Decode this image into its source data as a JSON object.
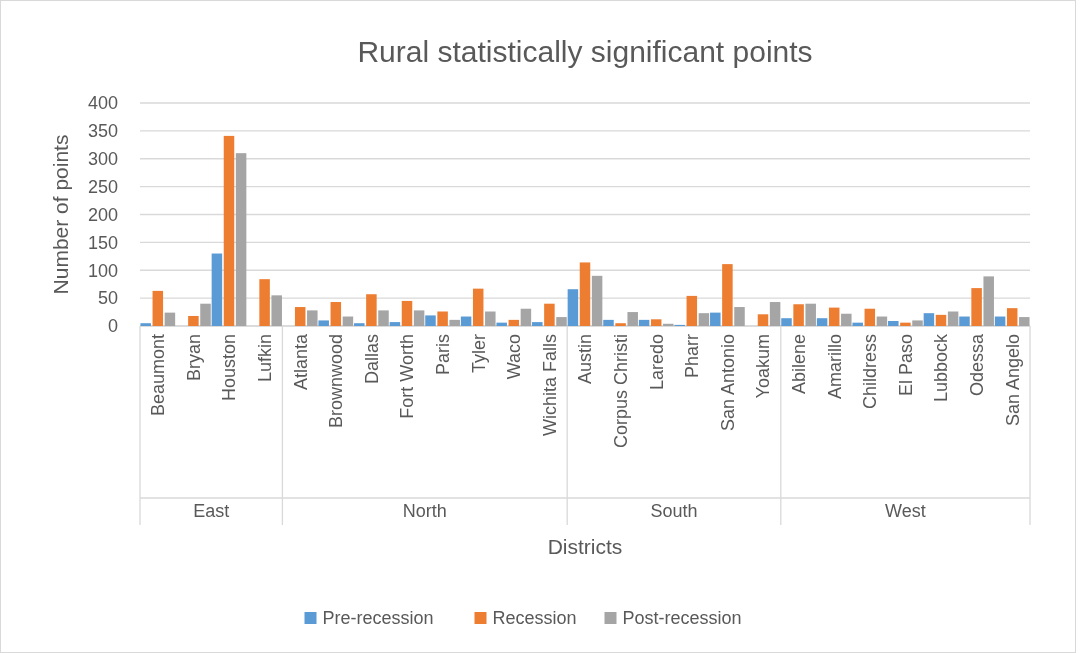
{
  "chart_data": {
    "type": "bar",
    "title": "Rural statistically significant points",
    "xlabel": "Districts",
    "ylabel": "Number of points",
    "categories": [
      "Beaumont",
      "Bryan",
      "Houston",
      "Lufkin",
      "Atlanta",
      "Brownwood",
      "Dallas",
      "Fort Worth",
      "Paris",
      "Tyler",
      "Waco",
      "Wichita Falls",
      "Austin",
      "Corpus Christi",
      "Laredo",
      "Pharr",
      "San Antonio",
      "Yoakum",
      "Abilene",
      "Amarillo",
      "Childress",
      "El Paso",
      "Lubbock",
      "Odessa",
      "San Angelo"
    ],
    "series": [
      {
        "name": "Pre-recession",
        "color": "#5b9bd5",
        "values": [
          5,
          0,
          130,
          0,
          0,
          10,
          5,
          7,
          19,
          17,
          6,
          7,
          66,
          11,
          11,
          2,
          24,
          0,
          14,
          14,
          6,
          9,
          23,
          17,
          17
        ]
      },
      {
        "name": "Recession",
        "color": "#ed7d31",
        "values": [
          63,
          18,
          341,
          84,
          34,
          43,
          57,
          45,
          26,
          67,
          11,
          40,
          114,
          5,
          12,
          54,
          111,
          21,
          39,
          33,
          31,
          6,
          20,
          68,
          32
        ]
      },
      {
        "name": "Post-recession",
        "color": "#a5a5a5",
        "values": [
          24,
          40,
          310,
          55,
          28,
          17,
          28,
          28,
          11,
          26,
          31,
          16,
          90,
          25,
          4,
          23,
          34,
          43,
          40,
          22,
          17,
          10,
          26,
          89,
          16
        ]
      }
    ],
    "annotations": [
      "East",
      "North",
      "South",
      "West"
    ],
    "ylim": [
      0,
      400
    ],
    "yticks": [
      0,
      50,
      100,
      150,
      200,
      250,
      300,
      350,
      400
    ],
    "grid": "y",
    "legend": "bottom"
  }
}
